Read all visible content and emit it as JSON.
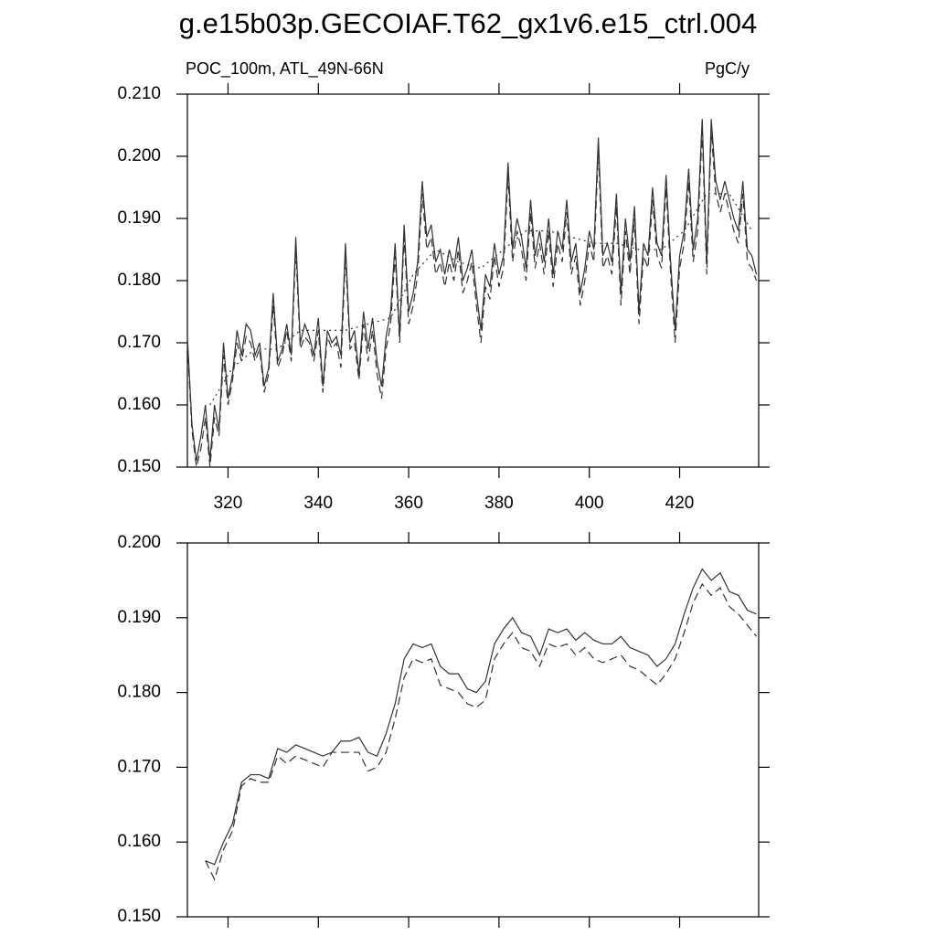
{
  "chart_data": [
    {
      "type": "line",
      "title": "g.e15b03p.GECOIAF.T62_gx1v6.e15_ctrl.004",
      "subtitle_left": "POC_100m, ATL_49N-66N",
      "subtitle_right": "PgC/y",
      "x": [
        311,
        312,
        313,
        314,
        315,
        316,
        317,
        318,
        319,
        320,
        321,
        322,
        323,
        324,
        325,
        326,
        327,
        328,
        329,
        330,
        331,
        332,
        333,
        334,
        335,
        336,
        337,
        338,
        339,
        340,
        341,
        342,
        343,
        344,
        345,
        346,
        347,
        348,
        349,
        350,
        351,
        352,
        353,
        354,
        355,
        356,
        357,
        358,
        359,
        360,
        361,
        362,
        363,
        364,
        365,
        366,
        367,
        368,
        369,
        370,
        371,
        372,
        373,
        374,
        375,
        376,
        377,
        378,
        379,
        380,
        381,
        382,
        383,
        384,
        385,
        386,
        387,
        388,
        389,
        390,
        391,
        392,
        393,
        394,
        395,
        396,
        397,
        398,
        399,
        400,
        401,
        402,
        403,
        404,
        405,
        406,
        407,
        408,
        409,
        410,
        411,
        412,
        413,
        414,
        415,
        416,
        417,
        418,
        419,
        420,
        421,
        422,
        423,
        424,
        425,
        426,
        427,
        428,
        429,
        430,
        431,
        432,
        433,
        434,
        435,
        436,
        437
      ],
      "series": [
        {
          "color": "#333333",
          "dash": "solid",
          "values": [
            0.171,
            0.157,
            0.151,
            0.155,
            0.16,
            0.151,
            0.16,
            0.156,
            0.17,
            0.161,
            0.165,
            0.172,
            0.168,
            0.173,
            0.172,
            0.168,
            0.17,
            0.163,
            0.166,
            0.178,
            0.167,
            0.169,
            0.173,
            0.168,
            0.187,
            0.17,
            0.173,
            0.171,
            0.168,
            0.174,
            0.163,
            0.172,
            0.17,
            0.171,
            0.168,
            0.186,
            0.17,
            0.172,
            0.165,
            0.175,
            0.169,
            0.174,
            0.167,
            0.163,
            0.171,
            0.175,
            0.186,
            0.171,
            0.189,
            0.175,
            0.178,
            0.183,
            0.196,
            0.187,
            0.189,
            0.183,
            0.185,
            0.181,
            0.185,
            0.182,
            0.187,
            0.18,
            0.182,
            0.185,
            0.178,
            0.172,
            0.181,
            0.179,
            0.186,
            0.181,
            0.184,
            0.199,
            0.185,
            0.19,
            0.187,
            0.182,
            0.193,
            0.184,
            0.188,
            0.183,
            0.19,
            0.181,
            0.188,
            0.185,
            0.193,
            0.183,
            0.186,
            0.178,
            0.182,
            0.188,
            0.185,
            0.203,
            0.184,
            0.186,
            0.183,
            0.194,
            0.178,
            0.19,
            0.183,
            0.192,
            0.175,
            0.186,
            0.184,
            0.195,
            0.186,
            0.184,
            0.197,
            0.183,
            0.172,
            0.184,
            0.188,
            0.198,
            0.185,
            0.19,
            0.206,
            0.183,
            0.206,
            0.196,
            0.193,
            0.196,
            0.193,
            0.19,
            0.188,
            0.196,
            0.185,
            0.184,
            0.181
          ]
        },
        {
          "color": "#333333",
          "dash": "dashed",
          "values": [
            0.17,
            0.156,
            0.15,
            0.153,
            0.158,
            0.15,
            0.158,
            0.155,
            0.168,
            0.16,
            0.164,
            0.17,
            0.167,
            0.171,
            0.17,
            0.167,
            0.169,
            0.162,
            0.165,
            0.176,
            0.166,
            0.168,
            0.172,
            0.167,
            0.185,
            0.169,
            0.171,
            0.17,
            0.167,
            0.172,
            0.162,
            0.171,
            0.169,
            0.17,
            0.166,
            0.184,
            0.169,
            0.17,
            0.164,
            0.173,
            0.167,
            0.172,
            0.165,
            0.161,
            0.169,
            0.173,
            0.184,
            0.17,
            0.187,
            0.173,
            0.176,
            0.181,
            0.194,
            0.185,
            0.187,
            0.181,
            0.183,
            0.179,
            0.183,
            0.18,
            0.185,
            0.178,
            0.18,
            0.183,
            0.176,
            0.17,
            0.179,
            0.177,
            0.184,
            0.179,
            0.182,
            0.197,
            0.183,
            0.188,
            0.185,
            0.18,
            0.191,
            0.182,
            0.186,
            0.181,
            0.188,
            0.179,
            0.186,
            0.183,
            0.191,
            0.181,
            0.184,
            0.176,
            0.18,
            0.186,
            0.183,
            0.201,
            0.182,
            0.184,
            0.181,
            0.192,
            0.176,
            0.188,
            0.181,
            0.19,
            0.173,
            0.184,
            0.182,
            0.193,
            0.184,
            0.182,
            0.195,
            0.181,
            0.17,
            0.182,
            0.186,
            0.196,
            0.183,
            0.188,
            0.204,
            0.181,
            0.204,
            0.194,
            0.191,
            0.194,
            0.191,
            0.188,
            0.186,
            0.194,
            0.183,
            0.182,
            0.18
          ]
        },
        {
          "color": "#333333",
          "dash": "dotted",
          "x": [
            316,
            321,
            326,
            331,
            336,
            341,
            346,
            351,
            356,
            361,
            366,
            371,
            376,
            381,
            386,
            391,
            396,
            401,
            406,
            411,
            416,
            421,
            426,
            431,
            436
          ],
          "values": [
            0.16,
            0.166,
            0.169,
            0.169,
            0.172,
            0.172,
            0.172,
            0.173,
            0.174,
            0.181,
            0.185,
            0.183,
            0.182,
            0.185,
            0.188,
            0.188,
            0.187,
            0.186,
            0.186,
            0.185,
            0.185,
            0.188,
            0.194,
            0.194,
            0.188
          ]
        }
      ],
      "xlim": [
        311,
        437.5
      ],
      "xticks": [
        320,
        340,
        360,
        380,
        400,
        420
      ],
      "ylim": [
        0.15,
        0.21
      ],
      "yticks": [
        {
          "value": 0.15,
          "label": "0.150"
        },
        {
          "value": 0.16,
          "label": "0.160"
        },
        {
          "value": 0.17,
          "label": "0.170"
        },
        {
          "value": 0.18,
          "label": "0.180"
        },
        {
          "value": 0.19,
          "label": "0.190"
        },
        {
          "value": 0.2,
          "label": "0.200"
        },
        {
          "value": 0.21,
          "label": "0.210"
        }
      ]
    },
    {
      "type": "line",
      "x": [
        315,
        317,
        319,
        321,
        323,
        325,
        327,
        329,
        331,
        333,
        335,
        337,
        339,
        341,
        343,
        345,
        347,
        349,
        351,
        353,
        355,
        357,
        359,
        361,
        363,
        365,
        367,
        369,
        371,
        373,
        375,
        377,
        379,
        381,
        383,
        385,
        387,
        389,
        391,
        393,
        395,
        397,
        399,
        401,
        403,
        405,
        407,
        409,
        411,
        413,
        415,
        417,
        419,
        421,
        423,
        425,
        427,
        429,
        431,
        433,
        435,
        437
      ],
      "series": [
        {
          "color": "#333333",
          "dash": "solid",
          "values": [
            0.1575,
            0.157,
            0.16,
            0.1625,
            0.168,
            0.169,
            0.169,
            0.1685,
            0.1725,
            0.172,
            0.173,
            0.1725,
            0.172,
            0.1715,
            0.172,
            0.1735,
            0.1735,
            0.174,
            0.172,
            0.1715,
            0.1745,
            0.1785,
            0.1845,
            0.1865,
            0.186,
            0.1865,
            0.1835,
            0.1825,
            0.1825,
            0.1805,
            0.18,
            0.1815,
            0.1865,
            0.1885,
            0.19,
            0.188,
            0.1875,
            0.185,
            0.1885,
            0.188,
            0.1885,
            0.187,
            0.188,
            0.187,
            0.1865,
            0.1865,
            0.1875,
            0.186,
            0.1855,
            0.185,
            0.1835,
            0.1845,
            0.1865,
            0.1905,
            0.194,
            0.1965,
            0.195,
            0.196,
            0.1935,
            0.193,
            0.191,
            0.1905
          ]
        },
        {
          "color": "#333333",
          "dash": "dashed",
          "values": [
            0.1575,
            0.155,
            0.159,
            0.1615,
            0.1675,
            0.1685,
            0.168,
            0.168,
            0.1715,
            0.1705,
            0.1715,
            0.171,
            0.1705,
            0.17,
            0.172,
            0.172,
            0.172,
            0.172,
            0.1695,
            0.17,
            0.172,
            0.1765,
            0.182,
            0.1845,
            0.184,
            0.1845,
            0.181,
            0.1805,
            0.18,
            0.1785,
            0.178,
            0.179,
            0.1845,
            0.1865,
            0.188,
            0.186,
            0.1855,
            0.1835,
            0.1865,
            0.186,
            0.1865,
            0.185,
            0.186,
            0.1845,
            0.184,
            0.1845,
            0.185,
            0.1835,
            0.183,
            0.182,
            0.181,
            0.1825,
            0.1845,
            0.188,
            0.192,
            0.1945,
            0.193,
            0.194,
            0.1915,
            0.1905,
            0.189,
            0.1875
          ]
        }
      ],
      "xlim": [
        311,
        437.5
      ],
      "xticks": [
        320,
        340,
        360,
        380,
        400,
        420
      ],
      "ylim": [
        0.15,
        0.2
      ],
      "yticks": [
        {
          "value": 0.15,
          "label": "0.150"
        },
        {
          "value": 0.16,
          "label": "0.160"
        },
        {
          "value": 0.17,
          "label": "0.170"
        },
        {
          "value": 0.18,
          "label": "0.180"
        },
        {
          "value": 0.19,
          "label": "0.190"
        },
        {
          "value": 0.2,
          "label": "0.200"
        }
      ]
    }
  ]
}
